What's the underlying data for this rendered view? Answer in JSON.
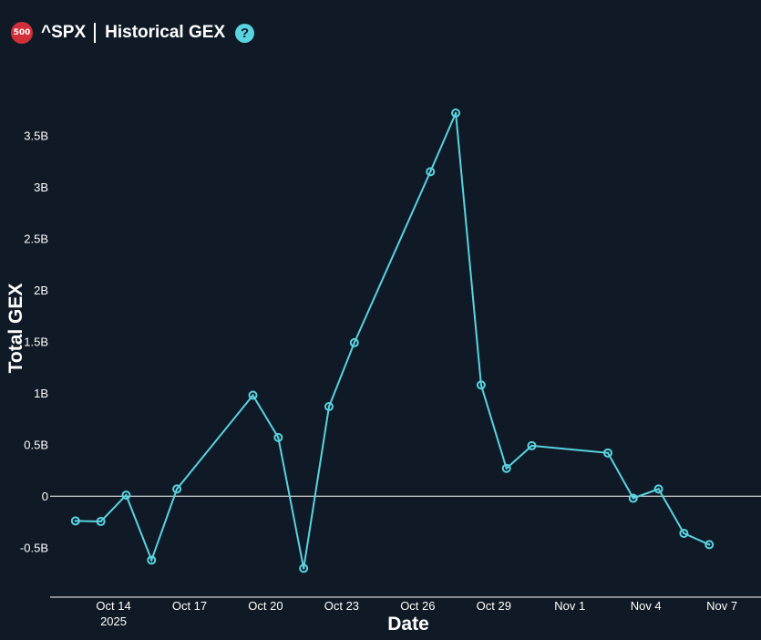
{
  "header": {
    "badge": "500",
    "ticker": "^SPX",
    "title": "Historical GEX",
    "help_icon": "question-circle-icon",
    "help_glyph": "?"
  },
  "colors": {
    "background": "#101a26",
    "line": "#59d3e0",
    "badge": "#d12f3a",
    "text": "#ffffff"
  },
  "chart_data": {
    "type": "line",
    "title": "^SPX | Historical GEX",
    "xlabel": "Date",
    "ylabel": "Total GEX",
    "ylim": [
      -0.98,
      3.95
    ],
    "xlim": [
      "2025-10-11T12:00",
      "2025-11-07T18:00"
    ],
    "grid": false,
    "zero_line": true,
    "y_ticks": [
      {
        "value": -0.5,
        "label": "-0.5B"
      },
      {
        "value": 0,
        "label": "0"
      },
      {
        "value": 0.5,
        "label": "0.5B"
      },
      {
        "value": 1,
        "label": "1B"
      },
      {
        "value": 1.5,
        "label": "1.5B"
      },
      {
        "value": 2,
        "label": "2B"
      },
      {
        "value": 2.5,
        "label": "2.5B"
      },
      {
        "value": 3,
        "label": "3B"
      },
      {
        "value": 3.5,
        "label": "3.5B"
      }
    ],
    "x_ticks": [
      {
        "date": "2025-10-14",
        "label": "Oct 14",
        "sublabel": "2025"
      },
      {
        "date": "2025-10-17",
        "label": "Oct 17"
      },
      {
        "date": "2025-10-20",
        "label": "Oct 20"
      },
      {
        "date": "2025-10-23",
        "label": "Oct 23"
      },
      {
        "date": "2025-10-26",
        "label": "Oct 26"
      },
      {
        "date": "2025-10-29",
        "label": "Oct 29"
      },
      {
        "date": "2025-11-01",
        "label": "Nov 1"
      },
      {
        "date": "2025-11-04",
        "label": "Nov 4"
      },
      {
        "date": "2025-11-07",
        "label": "Nov 7"
      }
    ],
    "series": [
      {
        "points": [
          {
            "x": "2025-10-12T12:00",
            "y": -0.24
          },
          {
            "x": "2025-10-13T12:00",
            "y": -0.245
          },
          {
            "x": "2025-10-14T12:00",
            "y": 0.01
          },
          {
            "x": "2025-10-15T12:00",
            "y": -0.62
          },
          {
            "x": "2025-10-16T12:00",
            "y": 0.07
          },
          {
            "x": "2025-10-19T12:00",
            "y": 0.98
          },
          {
            "x": "2025-10-20T12:00",
            "y": 0.57
          },
          {
            "x": "2025-10-21T12:00",
            "y": -0.7
          },
          {
            "x": "2025-10-22T12:00",
            "y": 0.87
          },
          {
            "x": "2025-10-23T12:00",
            "y": 1.49
          },
          {
            "x": "2025-10-26T12:00",
            "y": 3.15
          },
          {
            "x": "2025-10-27T12:00",
            "y": 3.72
          },
          {
            "x": "2025-10-28T12:00",
            "y": 1.08
          },
          {
            "x": "2025-10-29T12:00",
            "y": 0.27
          },
          {
            "x": "2025-10-30T12:00",
            "y": 0.49
          },
          {
            "x": "2025-11-02T12:00",
            "y": 0.42
          },
          {
            "x": "2025-11-03T12:00",
            "y": -0.02
          },
          {
            "x": "2025-11-04T12:00",
            "y": 0.07
          },
          {
            "x": "2025-11-05T12:00",
            "y": -0.36
          },
          {
            "x": "2025-11-06T12:00",
            "y": -0.47
          }
        ]
      }
    ]
  }
}
